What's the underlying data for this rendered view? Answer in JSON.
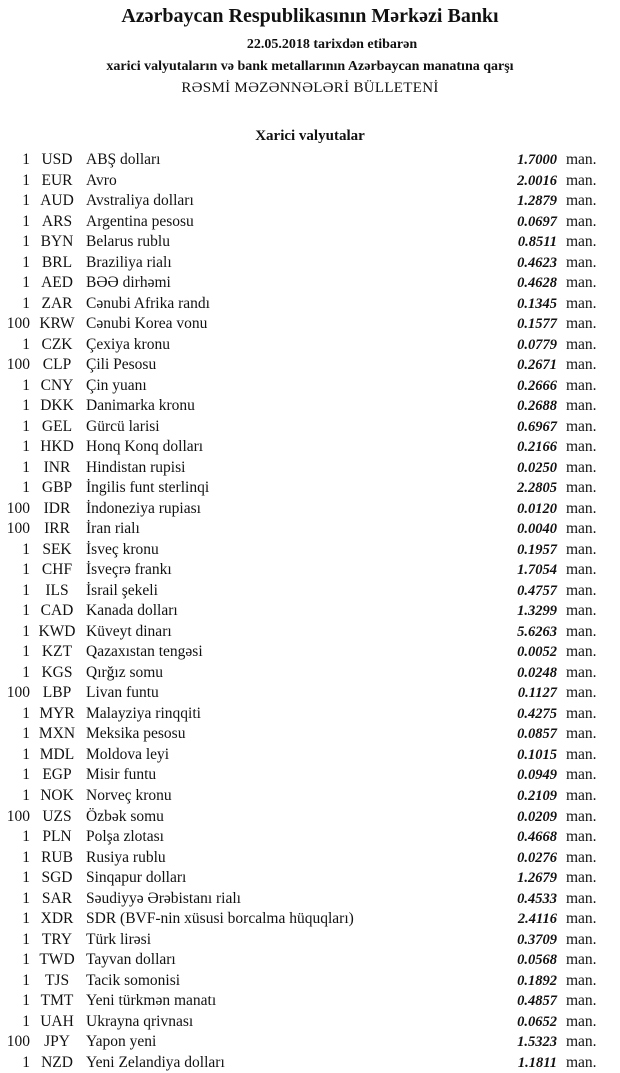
{
  "header": {
    "title": "Azərbaycan Respublikasının Mərkəzi Bankı",
    "date_line": "22.05.2018  tarixdən etibarən",
    "subtitle": "xarici valyutaların və bank metallarının Azərbaycan manatına qarşı",
    "bulletin": "RƏSMİ MƏZƏNNƏLƏRİ BÜLLETENİ"
  },
  "section_title": "Xarici valyutalar",
  "unit_label": "man.",
  "rates": [
    {
      "nominal": "1",
      "code": "USD",
      "name": "ABŞ dolları",
      "rate": "1.7000"
    },
    {
      "nominal": "1",
      "code": "EUR",
      "name": "Avro",
      "rate": "2.0016"
    },
    {
      "nominal": "1",
      "code": "AUD",
      "name": "Avstraliya dolları",
      "rate": "1.2879"
    },
    {
      "nominal": "1",
      "code": "ARS",
      "name": "Argentina pesosu",
      "rate": "0.0697"
    },
    {
      "nominal": "1",
      "code": "BYN",
      "name": "Belarus rublu",
      "rate": "0.8511"
    },
    {
      "nominal": "1",
      "code": "BRL",
      "name": "Braziliya rialı",
      "rate": "0.4623"
    },
    {
      "nominal": "1",
      "code": "AED",
      "name": "BƏƏ dirhəmi",
      "rate": "0.4628"
    },
    {
      "nominal": "1",
      "code": "ZAR",
      "name": "Cənubi Afrika randı",
      "rate": "0.1345"
    },
    {
      "nominal": "100",
      "code": "KRW",
      "name": "Cənubi Korea vonu",
      "rate": "0.1577"
    },
    {
      "nominal": "1",
      "code": "CZK",
      "name": "Çexiya kronu",
      "rate": "0.0779"
    },
    {
      "nominal": "100",
      "code": "CLP",
      "name": "Çili Pesosu",
      "rate": "0.2671"
    },
    {
      "nominal": "1",
      "code": "CNY",
      "name": "Çin yuanı",
      "rate": "0.2666"
    },
    {
      "nominal": "1",
      "code": "DKK",
      "name": "Danimarka kronu",
      "rate": "0.2688"
    },
    {
      "nominal": "1",
      "code": "GEL",
      "name": "Gürcü larisi",
      "rate": "0.6967"
    },
    {
      "nominal": "1",
      "code": "HKD",
      "name": "Honq Konq dolları",
      "rate": "0.2166"
    },
    {
      "nominal": "1",
      "code": "INR",
      "name": "Hindistan rupisi",
      "rate": "0.0250"
    },
    {
      "nominal": "1",
      "code": "GBP",
      "name": "İngilis funt sterlinqi",
      "rate": "2.2805"
    },
    {
      "nominal": "100",
      "code": "IDR",
      "name": "İndoneziya rupiası",
      "rate": "0.0120"
    },
    {
      "nominal": "100",
      "code": "IRR",
      "name": "İran rialı",
      "rate": "0.0040"
    },
    {
      "nominal": "1",
      "code": "SEK",
      "name": "İsveç kronu",
      "rate": "0.1957"
    },
    {
      "nominal": "1",
      "code": "CHF",
      "name": "İsveçrə frankı",
      "rate": "1.7054"
    },
    {
      "nominal": "1",
      "code": "ILS",
      "name": "İsrail şekeli",
      "rate": "0.4757"
    },
    {
      "nominal": "1",
      "code": "CAD",
      "name": "Kanada dolları",
      "rate": "1.3299"
    },
    {
      "nominal": "1",
      "code": "KWD",
      "name": "Küveyt dinarı",
      "rate": "5.6263"
    },
    {
      "nominal": "1",
      "code": "KZT",
      "name": "Qazaxıstan tengəsi",
      "rate": "0.0052"
    },
    {
      "nominal": "1",
      "code": "KGS",
      "name": "Qırğız somu",
      "rate": "0.0248"
    },
    {
      "nominal": "100",
      "code": "LBP",
      "name": "Livan funtu",
      "rate": "0.1127"
    },
    {
      "nominal": "1",
      "code": "MYR",
      "name": "Malayziya rinqqiti",
      "rate": "0.4275"
    },
    {
      "nominal": "1",
      "code": "MXN",
      "name": "Meksika pesosu",
      "rate": "0.0857"
    },
    {
      "nominal": "1",
      "code": "MDL",
      "name": "Moldova leyi",
      "rate": "0.1015"
    },
    {
      "nominal": "1",
      "code": "EGP",
      "name": "Misir funtu",
      "rate": "0.0949"
    },
    {
      "nominal": "1",
      "code": "NOK",
      "name": "Norveç kronu",
      "rate": "0.2109"
    },
    {
      "nominal": "100",
      "code": "UZS",
      "name": "Özbək somu",
      "rate": "0.0209"
    },
    {
      "nominal": "1",
      "code": "PLN",
      "name": "Polşa zlotası",
      "rate": "0.4668"
    },
    {
      "nominal": "1",
      "code": "RUB",
      "name": "Rusiya rublu",
      "rate": "0.0276"
    },
    {
      "nominal": "1",
      "code": "SGD",
      "name": "Sinqapur dolları",
      "rate": "1.2679"
    },
    {
      "nominal": "1",
      "code": "SAR",
      "name": "Səudiyyə Ərəbistanı rialı",
      "rate": "0.4533"
    },
    {
      "nominal": "1",
      "code": "XDR",
      "name": "SDR (BVF-nin xüsusi borcalma hüquqları)",
      "rate": "2.4116"
    },
    {
      "nominal": "1",
      "code": "TRY",
      "name": "Türk lirəsi",
      "rate": "0.3709"
    },
    {
      "nominal": "1",
      "code": "TWD",
      "name": "Tayvan dolları",
      "rate": "0.0568"
    },
    {
      "nominal": "1",
      "code": "TJS",
      "name": "Tacik somonisi",
      "rate": "0.1892"
    },
    {
      "nominal": "1",
      "code": "TMT",
      "name": "Yeni türkmən manatı",
      "rate": "0.4857"
    },
    {
      "nominal": "1",
      "code": "UAH",
      "name": "Ukrayna qrivnası",
      "rate": "0.0652"
    },
    {
      "nominal": "100",
      "code": "JPY",
      "name": "Yapon yeni",
      "rate": "1.5323"
    },
    {
      "nominal": "1",
      "code": "NZD",
      "name": "Yeni Zelandiya dolları",
      "rate": "1.1811"
    }
  ]
}
